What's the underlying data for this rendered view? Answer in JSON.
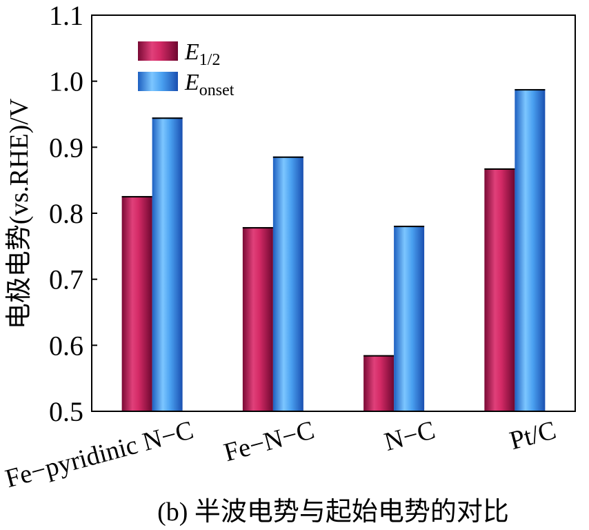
{
  "chart_data": {
    "type": "bar",
    "categories": [
      "Fe−pyridinic N−C",
      "Fe−N−C",
      "N−C",
      "Pt/C"
    ],
    "series": [
      {
        "name_main": "E",
        "name_sub": "1/2",
        "values": [
          0.826,
          0.779,
          0.585,
          0.868
        ],
        "color": "#c2185b"
      },
      {
        "name_main": "E",
        "name_sub": "onset",
        "values": [
          0.945,
          0.886,
          0.781,
          0.988
        ],
        "color": "#3d8fe6"
      }
    ],
    "ylabel": "电极电势(vs.RHE)/V",
    "ylim": [
      0.5,
      1.1
    ],
    "yticks": [
      "0.5",
      "0.6",
      "0.7",
      "0.8",
      "0.9",
      "1.0",
      "1.1"
    ],
    "legend_position": "top-left",
    "grid": false
  },
  "caption": "(b) 半波电势与起始电势的对比"
}
